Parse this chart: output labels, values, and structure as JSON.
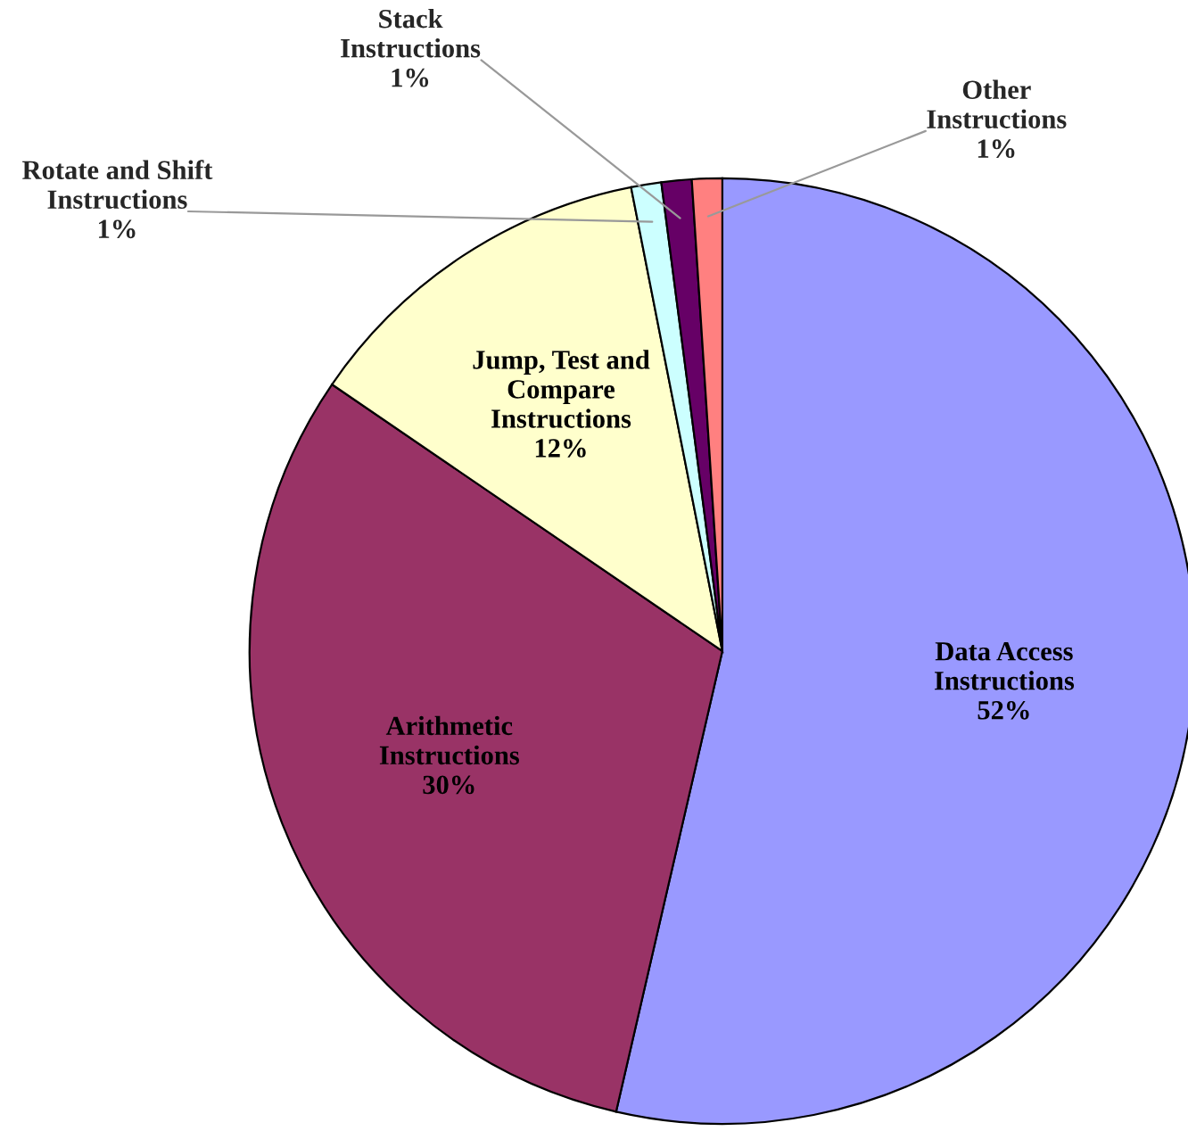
{
  "chart_data": {
    "type": "pie",
    "categories": [
      "Data Access\nInstructions",
      "Arithmetic\nInstructions",
      "Jump, Test and\nCompare\nInstructions",
      "Rotate and Shift\nInstructions",
      "Stack\nInstructions",
      "Other\nInstructions"
    ],
    "values": [
      52,
      30,
      12,
      1,
      1,
      1
    ],
    "value_labels": [
      "52%",
      "30%",
      "12%",
      "1%",
      "1%",
      "1%"
    ],
    "colors": [
      "#9999ff",
      "#993366",
      "#ffffcc",
      "#ccffff",
      "#660066",
      "#ff8080"
    ],
    "legend": false
  }
}
